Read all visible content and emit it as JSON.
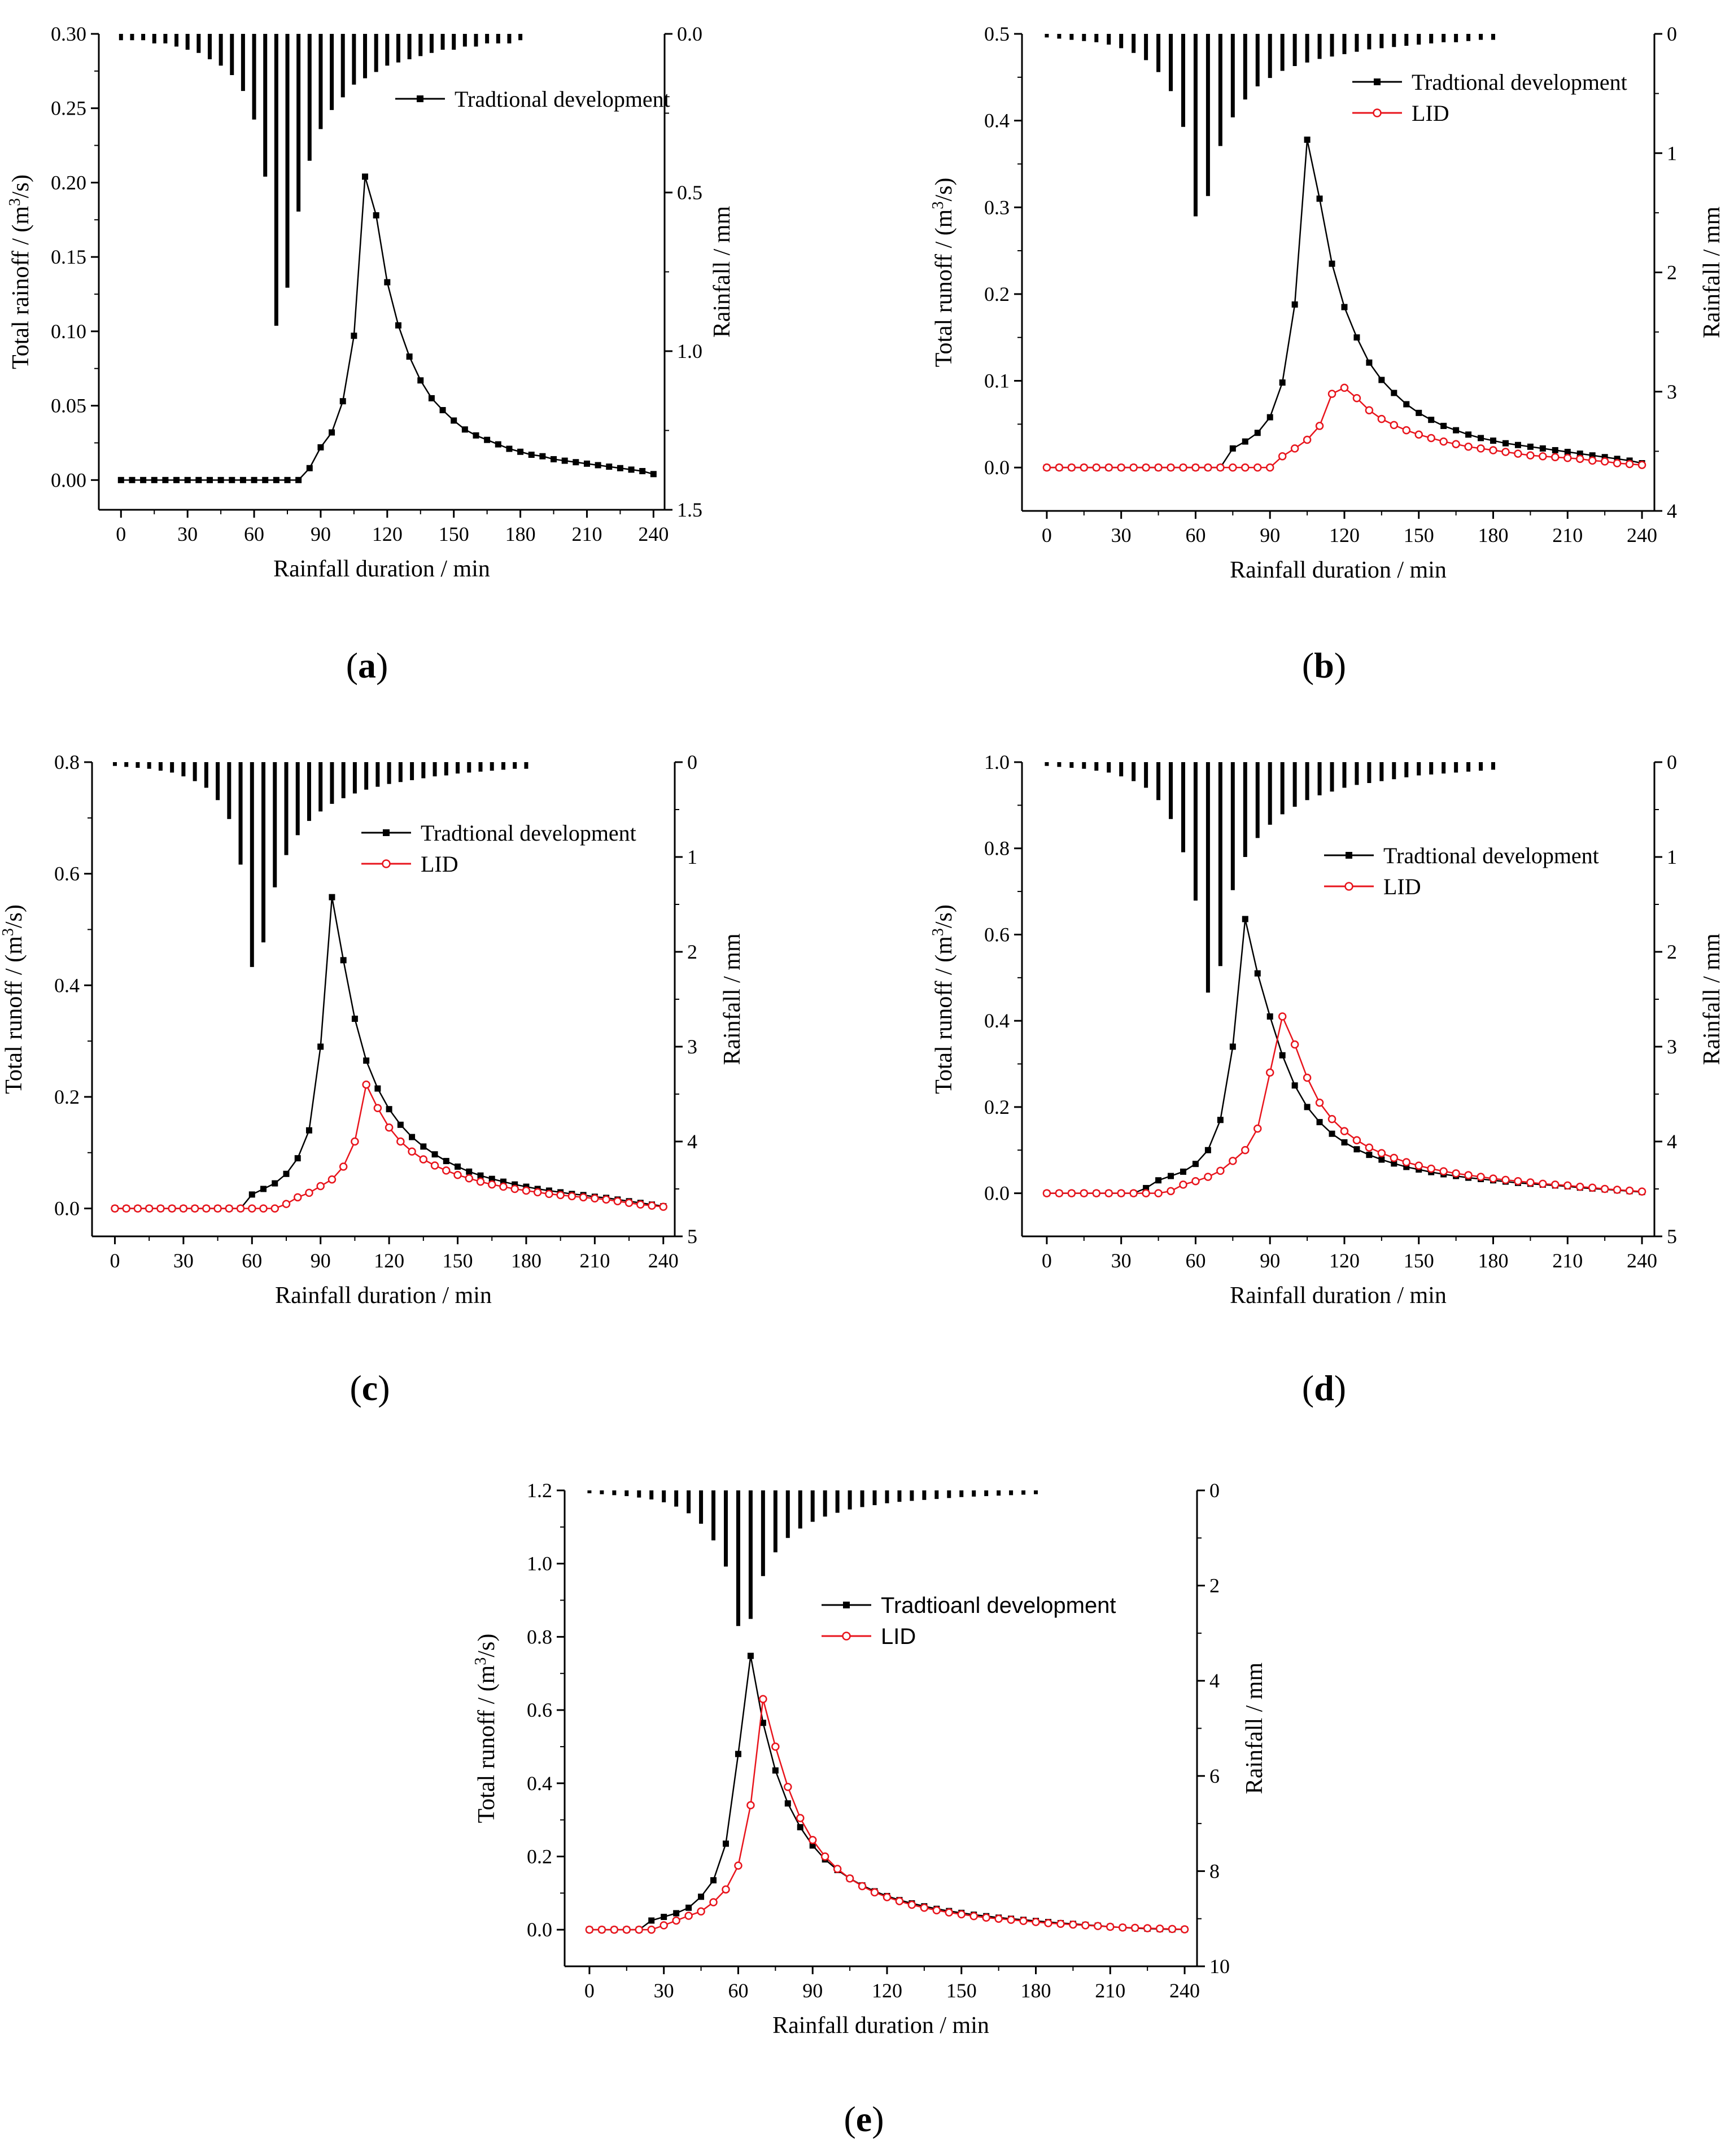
{
  "colors": {
    "traditional": "#000000",
    "lid": "#e8141c",
    "axis": "#000000"
  },
  "chart_data": [
    {
      "type": "line",
      "panel_label": "a",
      "xlabel": "Rainfall duration / min",
      "ylabel_main": "Total rainoff / (m",
      "ylabel_sup": "3",
      "ylabel_tail": "/s)",
      "y2label": "Rainfall / mm",
      "xlim": [
        -10,
        245
      ],
      "ylim": [
        -0.02,
        0.3
      ],
      "y2lim": [
        0,
        1.5
      ],
      "xticks": [
        0,
        30,
        60,
        90,
        120,
        150,
        180,
        210,
        240
      ],
      "yticks": [
        0.0,
        0.05,
        0.1,
        0.15,
        0.2,
        0.25,
        0.3
      ],
      "ytick_labels": [
        "0.00",
        "0.05",
        "0.10",
        "0.15",
        "0.20",
        "0.25",
        "0.30"
      ],
      "y2ticks": [
        0.0,
        0.5,
        1.0,
        1.5
      ],
      "y2tick_labels": [
        "0.0",
        "0.5",
        "1.0",
        "1.5"
      ],
      "rainfall": {
        "name": "Rainfall",
        "x_start": 0,
        "x_step": 5,
        "values": [
          0.02,
          0.02,
          0.02,
          0.03,
          0.03,
          0.04,
          0.05,
          0.06,
          0.08,
          0.1,
          0.13,
          0.18,
          0.27,
          0.45,
          0.92,
          0.8,
          0.56,
          0.4,
          0.3,
          0.24,
          0.2,
          0.16,
          0.14,
          0.12,
          0.1,
          0.09,
          0.08,
          0.07,
          0.06,
          0.05,
          0.05,
          0.04,
          0.04,
          0.03,
          0.03,
          0.03,
          0.02
        ]
      },
      "series": [
        {
          "name": "Tradtional development",
          "color": "#000000",
          "marker": "square",
          "x_start": 0,
          "x_step": 5,
          "values": [
            0,
            0,
            0,
            0,
            0,
            0,
            0,
            0,
            0,
            0,
            0,
            0,
            0,
            0,
            0,
            0,
            0,
            0.008,
            0.022,
            0.032,
            0.053,
            0.097,
            0.204,
            0.178,
            0.133,
            0.104,
            0.083,
            0.067,
            0.055,
            0.047,
            0.04,
            0.034,
            0.03,
            0.027,
            0.024,
            0.021,
            0.019,
            0.017,
            0.016,
            0.014,
            0.013,
            0.012,
            0.011,
            0.01,
            0.009,
            0.008,
            0.007,
            0.006,
            0.004
          ]
        }
      ]
    },
    {
      "type": "line",
      "panel_label": "b",
      "xlabel": "Rainfall duration / min",
      "ylabel_main": "Total runoff / (m",
      "ylabel_sup": "3",
      "ylabel_tail": "/s)",
      "y2label": "Rainfall / mm",
      "xlim": [
        -10,
        245
      ],
      "ylim": [
        -0.05,
        0.5
      ],
      "y2lim": [
        0,
        4
      ],
      "xticks": [
        0,
        30,
        60,
        90,
        120,
        150,
        180,
        210,
        240
      ],
      "yticks": [
        0.0,
        0.1,
        0.2,
        0.3,
        0.4,
        0.5
      ],
      "ytick_labels": [
        "0.0",
        "0.1",
        "0.2",
        "0.3",
        "0.4",
        "0.5"
      ],
      "y2ticks": [
        0,
        1,
        2,
        3,
        4
      ],
      "y2tick_labels": [
        "0",
        "1",
        "2",
        "3",
        "4"
      ],
      "rainfall": {
        "name": "Rainfall",
        "x_start": 0,
        "x_step": 5,
        "values": [
          0.03,
          0.04,
          0.05,
          0.06,
          0.07,
          0.09,
          0.12,
          0.16,
          0.22,
          0.32,
          0.48,
          0.78,
          1.53,
          1.36,
          0.94,
          0.7,
          0.55,
          0.44,
          0.37,
          0.31,
          0.27,
          0.24,
          0.21,
          0.19,
          0.17,
          0.15,
          0.13,
          0.12,
          0.11,
          0.1,
          0.09,
          0.08,
          0.07,
          0.07,
          0.06,
          0.05,
          0.05
        ]
      },
      "series": [
        {
          "name": "Tradtional development",
          "color": "#000000",
          "marker": "square",
          "x_start": 0,
          "x_step": 5,
          "values": [
            0,
            0,
            0,
            0,
            0,
            0,
            0,
            0,
            0,
            0,
            0,
            0,
            0,
            0,
            0,
            0.022,
            0.03,
            0.04,
            0.058,
            0.098,
            0.188,
            0.378,
            0.31,
            0.235,
            0.185,
            0.15,
            0.121,
            0.101,
            0.086,
            0.073,
            0.063,
            0.055,
            0.048,
            0.043,
            0.038,
            0.034,
            0.031,
            0.028,
            0.026,
            0.024,
            0.022,
            0.02,
            0.018,
            0.016,
            0.014,
            0.012,
            0.01,
            0.008,
            0.005
          ]
        },
        {
          "name": "LID",
          "color": "#e8141c",
          "marker": "circle",
          "x_start": 0,
          "x_step": 5,
          "values": [
            0,
            0,
            0,
            0,
            0,
            0,
            0,
            0,
            0,
            0,
            0,
            0,
            0,
            0,
            0,
            0,
            0,
            0,
            0,
            0.013,
            0.022,
            0.032,
            0.048,
            0.085,
            0.092,
            0.08,
            0.066,
            0.056,
            0.049,
            0.043,
            0.038,
            0.034,
            0.03,
            0.027,
            0.024,
            0.022,
            0.02,
            0.018,
            0.016,
            0.014,
            0.013,
            0.012,
            0.011,
            0.01,
            0.008,
            0.007,
            0.005,
            0.004,
            0.003
          ]
        }
      ]
    },
    {
      "type": "line",
      "panel_label": "c",
      "xlabel": "Rainfall duration / min",
      "ylabel_main": "Total runoff / (m",
      "ylabel_sup": "3",
      "ylabel_tail": "/s)",
      "y2label": "Rainfall / mm",
      "xlim": [
        -10,
        245
      ],
      "ylim": [
        -0.05,
        0.8
      ],
      "y2lim": [
        0,
        5
      ],
      "xticks": [
        0,
        30,
        60,
        90,
        120,
        150,
        180,
        210,
        240
      ],
      "yticks": [
        0.0,
        0.2,
        0.4,
        0.6,
        0.8
      ],
      "ytick_labels": [
        "0.0",
        "0.2",
        "0.4",
        "0.6",
        "0.8"
      ],
      "y2ticks": [
        0,
        1,
        2,
        3,
        4,
        5
      ],
      "y2tick_labels": [
        "0",
        "1",
        "2",
        "3",
        "4",
        "5"
      ],
      "rainfall": {
        "name": "Rainfall",
        "x_start": 0,
        "x_step": 5,
        "values": [
          0.04,
          0.05,
          0.06,
          0.07,
          0.09,
          0.11,
          0.15,
          0.2,
          0.27,
          0.4,
          0.6,
          1.08,
          2.16,
          1.9,
          1.32,
          0.98,
          0.77,
          0.62,
          0.52,
          0.44,
          0.38,
          0.33,
          0.29,
          0.26,
          0.23,
          0.21,
          0.19,
          0.17,
          0.15,
          0.14,
          0.12,
          0.11,
          0.1,
          0.09,
          0.08,
          0.07,
          0.07
        ]
      },
      "series": [
        {
          "name": "Tradtional development",
          "color": "#000000",
          "marker": "square",
          "x_start": 0,
          "x_step": 5,
          "values": [
            0,
            0,
            0,
            0,
            0,
            0,
            0,
            0,
            0,
            0,
            0,
            0,
            0.025,
            0.035,
            0.045,
            0.062,
            0.09,
            0.14,
            0.29,
            0.558,
            0.445,
            0.34,
            0.265,
            0.215,
            0.178,
            0.15,
            0.128,
            0.111,
            0.097,
            0.085,
            0.075,
            0.066,
            0.059,
            0.053,
            0.048,
            0.043,
            0.039,
            0.035,
            0.032,
            0.029,
            0.026,
            0.024,
            0.021,
            0.019,
            0.016,
            0.013,
            0.01,
            0.007,
            0.004
          ]
        },
        {
          "name": "LID",
          "color": "#e8141c",
          "marker": "circle",
          "x_start": 0,
          "x_step": 5,
          "values": [
            0,
            0,
            0,
            0,
            0,
            0,
            0,
            0,
            0,
            0,
            0,
            0,
            0,
            0,
            0,
            0.008,
            0.02,
            0.028,
            0.04,
            0.052,
            0.075,
            0.12,
            0.222,
            0.18,
            0.145,
            0.12,
            0.102,
            0.088,
            0.077,
            0.068,
            0.06,
            0.054,
            0.048,
            0.043,
            0.039,
            0.035,
            0.032,
            0.029,
            0.026,
            0.024,
            0.022,
            0.02,
            0.018,
            0.016,
            0.013,
            0.01,
            0.007,
            0.005,
            0.003
          ]
        }
      ]
    },
    {
      "type": "line",
      "panel_label": "d",
      "xlabel": "Rainfall duration / min",
      "ylabel_main": "Total runoff / (m",
      "ylabel_sup": "3",
      "ylabel_tail": "/s)",
      "y2label": "Rainfall / mm",
      "xlim": [
        -10,
        245
      ],
      "ylim": [
        -0.1,
        1.0
      ],
      "y2lim": [
        0,
        5
      ],
      "xticks": [
        0,
        30,
        60,
        90,
        120,
        150,
        180,
        210,
        240
      ],
      "yticks": [
        0.0,
        0.2,
        0.4,
        0.6,
        0.8,
        1.0
      ],
      "ytick_labels": [
        "0.0",
        "0.2",
        "0.4",
        "0.6",
        "0.8",
        "1.0"
      ],
      "y2ticks": [
        0,
        1,
        2,
        3,
        4,
        5
      ],
      "y2tick_labels": [
        "0",
        "1",
        "2",
        "3",
        "4",
        "5"
      ],
      "rainfall": {
        "name": "Rainfall",
        "x_start": 0,
        "x_step": 5,
        "values": [
          0.04,
          0.05,
          0.06,
          0.07,
          0.09,
          0.11,
          0.15,
          0.2,
          0.27,
          0.4,
          0.6,
          0.95,
          1.46,
          2.43,
          2.15,
          1.35,
          1.0,
          0.8,
          0.66,
          0.55,
          0.47,
          0.4,
          0.35,
          0.31,
          0.27,
          0.24,
          0.22,
          0.2,
          0.18,
          0.16,
          0.14,
          0.13,
          0.12,
          0.11,
          0.1,
          0.09,
          0.08
        ]
      },
      "series": [
        {
          "name": "Tradtional development",
          "color": "#000000",
          "marker": "square",
          "x_start": 0,
          "x_step": 5,
          "values": [
            0,
            0,
            0,
            0,
            0,
            0,
            0,
            0,
            0.012,
            0.03,
            0.04,
            0.05,
            0.068,
            0.1,
            0.17,
            0.34,
            0.636,
            0.51,
            0.41,
            0.32,
            0.25,
            0.2,
            0.165,
            0.138,
            0.118,
            0.102,
            0.089,
            0.078,
            0.069,
            0.061,
            0.055,
            0.049,
            0.044,
            0.04,
            0.036,
            0.033,
            0.03,
            0.027,
            0.024,
            0.022,
            0.02,
            0.018,
            0.016,
            0.013,
            0.011,
            0.009,
            0.007,
            0.005,
            0.003
          ]
        },
        {
          "name": "LID",
          "color": "#e8141c",
          "marker": "circle",
          "x_start": 0,
          "x_step": 5,
          "values": [
            0,
            0,
            0,
            0,
            0,
            0,
            0,
            0,
            0,
            0,
            0.005,
            0.02,
            0.028,
            0.038,
            0.052,
            0.075,
            0.1,
            0.15,
            0.28,
            0.41,
            0.345,
            0.268,
            0.21,
            0.172,
            0.144,
            0.123,
            0.106,
            0.093,
            0.082,
            0.072,
            0.064,
            0.057,
            0.051,
            0.046,
            0.042,
            0.038,
            0.034,
            0.031,
            0.028,
            0.025,
            0.022,
            0.02,
            0.018,
            0.015,
            0.013,
            0.01,
            0.008,
            0.006,
            0.004
          ]
        }
      ]
    },
    {
      "type": "line",
      "panel_label": "e",
      "xlabel": "Rainfall duration / min",
      "ylabel_main": "Total runoff / (m",
      "ylabel_sup": "3",
      "ylabel_tail": "/s)",
      "y2label": "Rainfall / mm",
      "legend_font": "sans",
      "xlim": [
        -10,
        245
      ],
      "ylim": [
        -0.1,
        1.2
      ],
      "y2lim": [
        0,
        10
      ],
      "xticks": [
        0,
        30,
        60,
        90,
        120,
        150,
        180,
        210,
        240
      ],
      "yticks": [
        0.0,
        0.2,
        0.4,
        0.6,
        0.8,
        1.0,
        1.2
      ],
      "ytick_labels": [
        "0.0",
        "0.2",
        "0.4",
        "0.6",
        "0.8",
        "1.0",
        "1.2"
      ],
      "y2ticks": [
        0,
        2,
        4,
        6,
        8,
        10
      ],
      "y2tick_labels": [
        "0",
        "2",
        "4",
        "6",
        "8",
        "10"
      ],
      "rainfall": {
        "name": "Rainfall",
        "x_start": 0,
        "x_step": 5,
        "values": [
          0.06,
          0.08,
          0.1,
          0.12,
          0.15,
          0.19,
          0.25,
          0.34,
          0.48,
          0.7,
          1.05,
          1.6,
          2.85,
          2.7,
          1.8,
          1.3,
          1.0,
          0.8,
          0.66,
          0.55,
          0.47,
          0.4,
          0.35,
          0.31,
          0.27,
          0.24,
          0.22,
          0.2,
          0.18,
          0.16,
          0.14,
          0.13,
          0.12,
          0.11,
          0.1,
          0.09,
          0.08
        ]
      },
      "series": [
        {
          "name": "Tradtioanl development",
          "color": "#000000",
          "marker": "square",
          "x_start": 0,
          "x_step": 5,
          "values": [
            0,
            0,
            0,
            0,
            0,
            0.025,
            0.035,
            0.045,
            0.06,
            0.09,
            0.135,
            0.235,
            0.48,
            0.748,
            0.565,
            0.435,
            0.345,
            0.28,
            0.23,
            0.192,
            0.163,
            0.14,
            0.121,
            0.105,
            0.092,
            0.081,
            0.072,
            0.064,
            0.057,
            0.051,
            0.046,
            0.041,
            0.037,
            0.033,
            0.03,
            0.027,
            0.024,
            0.021,
            0.018,
            0.016,
            0.013,
            0.011,
            0.008,
            0.006,
            0.004,
            0.003,
            0.002,
            0.001,
            0.001
          ]
        },
        {
          "name": "LID",
          "color": "#e8141c",
          "marker": "circle",
          "x_start": 0,
          "x_step": 5,
          "values": [
            0,
            0,
            0,
            0,
            0,
            0,
            0.012,
            0.025,
            0.038,
            0.05,
            0.075,
            0.11,
            0.175,
            0.34,
            0.63,
            0.5,
            0.39,
            0.305,
            0.245,
            0.2,
            0.166,
            0.14,
            0.119,
            0.102,
            0.089,
            0.078,
            0.068,
            0.06,
            0.053,
            0.047,
            0.042,
            0.037,
            0.033,
            0.03,
            0.027,
            0.024,
            0.021,
            0.018,
            0.016,
            0.014,
            0.012,
            0.01,
            0.008,
            0.006,
            0.005,
            0.004,
            0.003,
            0.002,
            0.001
          ]
        }
      ]
    }
  ]
}
